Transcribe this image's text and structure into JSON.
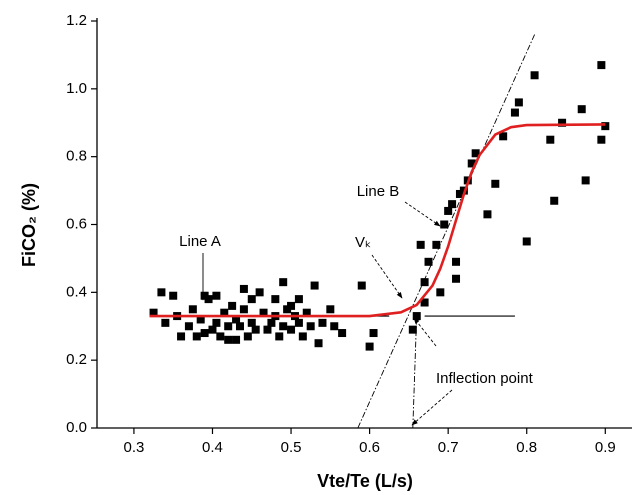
{
  "chart_data": {
    "type": "scatter",
    "xlabel": "Vte/Te (L/s)",
    "ylabel": "FiCO₂ (%)",
    "xlim": [
      0.253,
      0.934
    ],
    "ylim": [
      0,
      1.2
    ],
    "xticks": [
      0.3,
      0.4,
      0.5,
      0.6,
      0.7,
      0.8,
      0.9
    ],
    "yticks": [
      {
        "value": 0,
        "label": "0.0"
      },
      0.2,
      0.4,
      0.6,
      0.8,
      {
        "value": 1,
        "label": "1.0"
      },
      1.2
    ],
    "marker_color": "#000000",
    "x": [
      0.325,
      0.335,
      0.34,
      0.35,
      0.355,
      0.36,
      0.37,
      0.375,
      0.38,
      0.385,
      0.39,
      0.39,
      0.395,
      0.4,
      0.405,
      0.405,
      0.41,
      0.415,
      0.42,
      0.42,
      0.425,
      0.43,
      0.43,
      0.435,
      0.44,
      0.44,
      0.445,
      0.45,
      0.45,
      0.455,
      0.46,
      0.465,
      0.47,
      0.475,
      0.48,
      0.48,
      0.485,
      0.49,
      0.49,
      0.495,
      0.5,
      0.5,
      0.505,
      0.51,
      0.51,
      0.515,
      0.52,
      0.525,
      0.53,
      0.535,
      0.54,
      0.55,
      0.555,
      0.565,
      0.59,
      0.6,
      0.605,
      0.655,
      0.66,
      0.665,
      0.67,
      0.67,
      0.675,
      0.685,
      0.69,
      0.695,
      0.7,
      0.705,
      0.71,
      0.71,
      0.715,
      0.72,
      0.725,
      0.73,
      0.735,
      0.75,
      0.76,
      0.77,
      0.785,
      0.79,
      0.8,
      0.81,
      0.83,
      0.835,
      0.845,
      0.87,
      0.875,
      0.895,
      0.895,
      0.9
    ],
    "values": [
      0.34,
      0.4,
      0.31,
      0.39,
      0.33,
      0.27,
      0.3,
      0.35,
      0.27,
      0.32,
      0.28,
      0.39,
      0.38,
      0.29,
      0.31,
      0.39,
      0.27,
      0.34,
      0.3,
      0.26,
      0.36,
      0.32,
      0.26,
      0.3,
      0.41,
      0.35,
      0.27,
      0.38,
      0.31,
      0.29,
      0.4,
      0.34,
      0.29,
      0.31,
      0.33,
      0.38,
      0.27,
      0.43,
      0.3,
      0.35,
      0.36,
      0.29,
      0.33,
      0.31,
      0.38,
      0.27,
      0.34,
      0.3,
      0.42,
      0.25,
      0.31,
      0.35,
      0.3,
      0.28,
      0.42,
      0.24,
      0.28,
      0.29,
      0.33,
      0.54,
      0.43,
      0.37,
      0.49,
      0.54,
      0.4,
      0.6,
      0.64,
      0.66,
      0.44,
      0.49,
      0.69,
      0.7,
      0.73,
      0.78,
      0.81,
      0.63,
      0.72,
      0.86,
      0.93,
      0.96,
      0.55,
      1.04,
      0.85,
      0.67,
      0.9,
      0.94,
      0.73,
      1.07,
      0.85,
      0.89
    ],
    "fit": {
      "color": "#e02020",
      "x": [
        0.32,
        0.6,
        0.64,
        0.66,
        0.68,
        0.69,
        0.7,
        0.71,
        0.72,
        0.73,
        0.74,
        0.76,
        0.78,
        0.8,
        0.9
      ],
      "values": [
        0.33,
        0.33,
        0.341,
        0.363,
        0.42,
        0.47,
        0.536,
        0.6125,
        0.689,
        0.755,
        0.805,
        0.865,
        0.887,
        0.893,
        0.895
      ]
    },
    "reference_lines": [
      {
        "x": [
          0.32,
          0.625
        ],
        "y": [
          0.33,
          0.33
        ],
        "dash": false
      },
      {
        "x": [
          0.67,
          0.785
        ],
        "y": [
          0.33,
          0.33
        ],
        "dash": false
      },
      {
        "x": [
          0.585,
          0.81
        ],
        "y": [
          0,
          1.16
        ],
        "dash": true
      },
      {
        "x": [
          0.655,
          0.66
        ],
        "y": [
          0,
          0.34
        ],
        "dash": true
      }
    ],
    "annotations": [
      "Line A",
      "Line B",
      "Vₖ",
      "Inflection point"
    ]
  }
}
